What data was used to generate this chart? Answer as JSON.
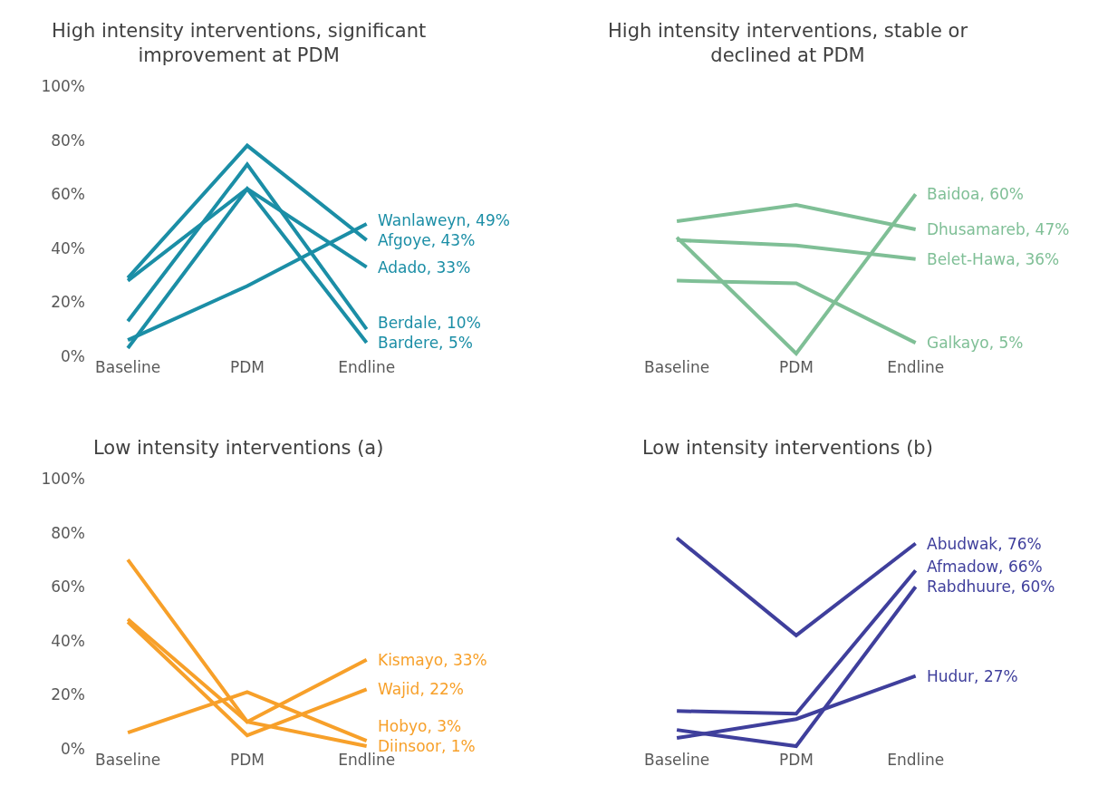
{
  "chart_data": [
    {
      "type": "line",
      "title": "High intensity interventions, significant improvement at PDM",
      "categories": [
        "Baseline",
        "PDM",
        "Endline"
      ],
      "ylim": [
        0,
        100
      ],
      "yticks": [
        {
          "value": 0,
          "label": "0%"
        },
        {
          "value": 20,
          "label": "20%"
        },
        {
          "value": 40,
          "label": "40%"
        },
        {
          "value": 60,
          "label": "60%"
        },
        {
          "value": 80,
          "label": "80%"
        },
        {
          "value": 100,
          "label": "100%"
        }
      ],
      "series": [
        {
          "name": "Wanlaweyn, 49%",
          "color": "#1b8ea6",
          "values": [
            6,
            26,
            49
          ]
        },
        {
          "name": "Afgoye, 43%",
          "color": "#1b8ea6",
          "values": [
            29,
            78,
            43
          ]
        },
        {
          "name": "Adado, 33%",
          "color": "#1b8ea6",
          "values": [
            28,
            62,
            33
          ]
        },
        {
          "name": "Berdale, 10%",
          "color": "#1b8ea6",
          "values": [
            13,
            71,
            10
          ]
        },
        {
          "name": "Bardere, 5%",
          "color": "#1b8ea6",
          "values": [
            3,
            62,
            5
          ]
        }
      ]
    },
    {
      "type": "line",
      "title": "High intensity interventions, stable or declined at PDM",
      "categories": [
        "Baseline",
        "PDM",
        "Endline"
      ],
      "ylim": [
        0,
        100
      ],
      "tick_labels": "x",
      "series": [
        {
          "name": "Baidoa, 60%",
          "color": "#7fbf96",
          "values": [
            44,
            1,
            60
          ]
        },
        {
          "name": "Dhusamareb, 47%",
          "color": "#7fbf96",
          "values": [
            50,
            56,
            47
          ]
        },
        {
          "name": "Belet-Hawa, 36%",
          "color": "#7fbf96",
          "values": [
            43,
            41,
            36
          ]
        },
        {
          "name": "Galkayo, 5%",
          "color": "#7fbf96",
          "values": [
            28,
            27,
            5
          ]
        }
      ]
    },
    {
      "type": "line",
      "title": "Low intensity interventions (a)",
      "categories": [
        "Baseline",
        "PDM",
        "Endline"
      ],
      "ylim": [
        0,
        100
      ],
      "yticks": [
        {
          "value": 0,
          "label": "0%"
        },
        {
          "value": 20,
          "label": "20%"
        },
        {
          "value": 40,
          "label": "40%"
        },
        {
          "value": 60,
          "label": "60%"
        },
        {
          "value": 80,
          "label": "80%"
        },
        {
          "value": 100,
          "label": "100%"
        }
      ],
      "series": [
        {
          "name": "Kismayo, 33%",
          "color": "#f7a02a",
          "values": [
            70,
            10,
            33
          ]
        },
        {
          "name": "Wajid, 22%",
          "color": "#f7a02a",
          "values": [
            47,
            5,
            22
          ]
        },
        {
          "name": "Hobyo, 3%",
          "color": "#f7a02a",
          "values": [
            6,
            21,
            3
          ]
        },
        {
          "name": "Diinsoor, 1%",
          "color": "#f7a02a",
          "values": [
            48,
            10,
            1
          ]
        }
      ]
    },
    {
      "type": "line",
      "title": "Low intensity interventions (b)",
      "categories": [
        "Baseline",
        "PDM",
        "Endline"
      ],
      "ylim": [
        0,
        100
      ],
      "tick_labels": "x",
      "series": [
        {
          "name": "Abudwak, 76%",
          "color": "#3f3f9c",
          "values": [
            78,
            42,
            76
          ]
        },
        {
          "name": "Afmadow, 66%",
          "color": "#3f3f9c",
          "values": [
            14,
            13,
            66
          ]
        },
        {
          "name": "Rabdhuure, 60%",
          "color": "#3f3f9c",
          "values": [
            7,
            1,
            60
          ]
        },
        {
          "name": "Hudur, 27%",
          "color": "#3f3f9c",
          "values": [
            4,
            11,
            27
          ]
        }
      ]
    }
  ]
}
